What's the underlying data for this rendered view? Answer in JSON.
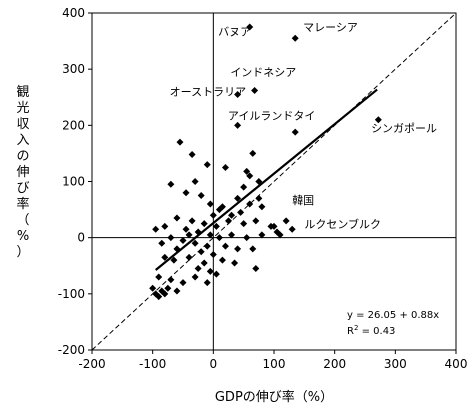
{
  "chart_data": {
    "type": "scatter",
    "title": "",
    "xlabel": "GDPの伸び率（%）",
    "ylabel": "観光収入の伸び率（%）",
    "ylabel_chars": [
      "観",
      "光",
      "収",
      "入",
      "の",
      "伸",
      "び",
      "率",
      "（",
      "%",
      "）"
    ],
    "xlim": [
      -200,
      400
    ],
    "ylim": [
      -200,
      400
    ],
    "xticks": [
      "-200",
      "-100",
      "0",
      "100",
      "200",
      "300",
      "400"
    ],
    "yticks": [
      "-200",
      "-100",
      "0",
      "100",
      "200",
      "300",
      "400"
    ],
    "grid": false,
    "reference_line": {
      "style": "dashed",
      "from": [
        -200,
        -200
      ],
      "to": [
        400,
        400
      ]
    },
    "regression_line": {
      "intercept": 26.05,
      "slope": 0.88,
      "x_range": [
        -95,
        270
      ]
    },
    "equation": "y = 26.05 + 0.88x",
    "r2_prefix": "R",
    "r2_exp": "2",
    "r2_value": " = 0.43",
    "points": [
      [
        60,
        375
      ],
      [
        135,
        355
      ],
      [
        68,
        262
      ],
      [
        40,
        255
      ],
      [
        272,
        210
      ],
      [
        135,
        188
      ],
      [
        40,
        200
      ],
      [
        -55,
        170
      ],
      [
        -35,
        148
      ],
      [
        -10,
        130
      ],
      [
        20,
        125
      ],
      [
        55,
        118
      ],
      [
        60,
        110
      ],
      [
        75,
        100
      ],
      [
        -30,
        100
      ],
      [
        -70,
        95
      ],
      [
        -45,
        80
      ],
      [
        -20,
        75
      ],
      [
        -5,
        60
      ],
      [
        15,
        55
      ],
      [
        40,
        70
      ],
      [
        60,
        60
      ],
      [
        80,
        55
      ],
      [
        45,
        45
      ],
      [
        0,
        40
      ],
      [
        -60,
        35
      ],
      [
        -35,
        30
      ],
      [
        -15,
        25
      ],
      [
        5,
        20
      ],
      [
        25,
        30
      ],
      [
        50,
        25
      ],
      [
        70,
        30
      ],
      [
        95,
        20
      ],
      [
        -80,
        20
      ],
      [
        -95,
        15
      ],
      [
        -45,
        15
      ],
      [
        -25,
        10
      ],
      [
        -5,
        5
      ],
      [
        10,
        0
      ],
      [
        30,
        5
      ],
      [
        55,
        0
      ],
      [
        80,
        5
      ],
      [
        105,
        10
      ],
      [
        -70,
        0
      ],
      [
        -50,
        -5
      ],
      [
        -30,
        -10
      ],
      [
        -10,
        -15
      ],
      [
        20,
        -15
      ],
      [
        40,
        -20
      ],
      [
        65,
        -20
      ],
      [
        -85,
        -10
      ],
      [
        -60,
        -20
      ],
      [
        -20,
        -25
      ],
      [
        0,
        -30
      ],
      [
        15,
        -40
      ],
      [
        35,
        -45
      ],
      [
        -40,
        -35
      ],
      [
        -15,
        -45
      ],
      [
        -65,
        -40
      ],
      [
        -80,
        -35
      ],
      [
        -25,
        -55
      ],
      [
        -5,
        -60
      ],
      [
        5,
        -65
      ],
      [
        70,
        -55
      ],
      [
        -90,
        -70
      ],
      [
        -70,
        -75
      ],
      [
        -50,
        -80
      ],
      [
        -30,
        -70
      ],
      [
        -10,
        -80
      ],
      [
        -75,
        -90
      ],
      [
        -85,
        -95
      ],
      [
        -95,
        -100
      ],
      [
        -60,
        -95
      ],
      [
        -90,
        -105
      ],
      [
        -80,
        -100
      ],
      [
        110,
        5
      ],
      [
        130,
        15
      ],
      [
        50,
        90
      ],
      [
        65,
        150
      ],
      [
        30,
        40
      ],
      [
        -40,
        5
      ],
      [
        10,
        50
      ],
      [
        -100,
        -90
      ],
      [
        75,
        70
      ],
      [
        100,
        20
      ],
      [
        120,
        30
      ]
    ],
    "annotations": [
      {
        "text": "バヌア",
        "x": 8,
        "y": 360
      },
      {
        "text": "マレーシア",
        "x": 148,
        "y": 368
      },
      {
        "text": "インドネシア",
        "x": 28,
        "y": 288
      },
      {
        "text": "オーストラリア",
        "x": -72,
        "y": 253
      },
      {
        "text": "アイルランドタイ",
        "x": 24,
        "y": 210
      },
      {
        "text": "シンガポール",
        "x": 260,
        "y": 188
      },
      {
        "text": "韓国",
        "x": 130,
        "y": 60
      },
      {
        "text": "ルクセンブルク",
        "x": 150,
        "y": 17
      }
    ]
  }
}
